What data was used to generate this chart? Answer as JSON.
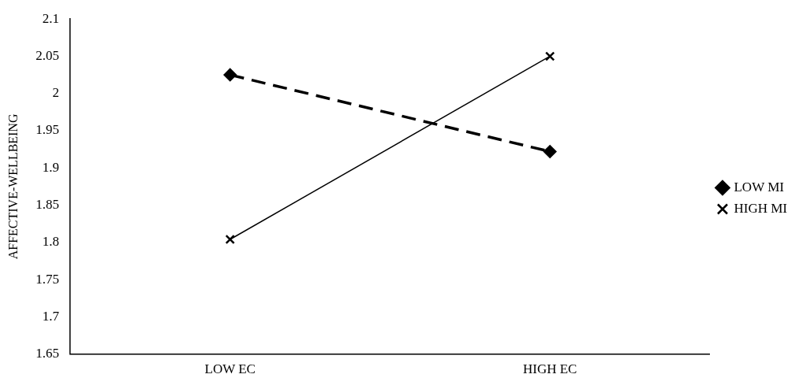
{
  "chart_data": {
    "type": "line",
    "ylabel": "AFFECTIVE-WELLBEING",
    "categories": [
      "LOW EC",
      "HIGH EC"
    ],
    "series": [
      {
        "name": "LOW MI",
        "color": "#000000",
        "values": [
          2.025,
          1.922
        ],
        "marker": "diamond",
        "line_style": "dashed"
      },
      {
        "name": "HIGH MI",
        "color": "#000000",
        "values": [
          1.804,
          2.05
        ],
        "marker": "cross",
        "line_style": "solid"
      }
    ],
    "ylim": [
      1.65,
      2.1
    ],
    "yticks": [
      1.65,
      1.7,
      1.75,
      1.8,
      1.85,
      1.9,
      1.95,
      2,
      2.05,
      2.1
    ],
    "grid": false,
    "legend": "right"
  }
}
